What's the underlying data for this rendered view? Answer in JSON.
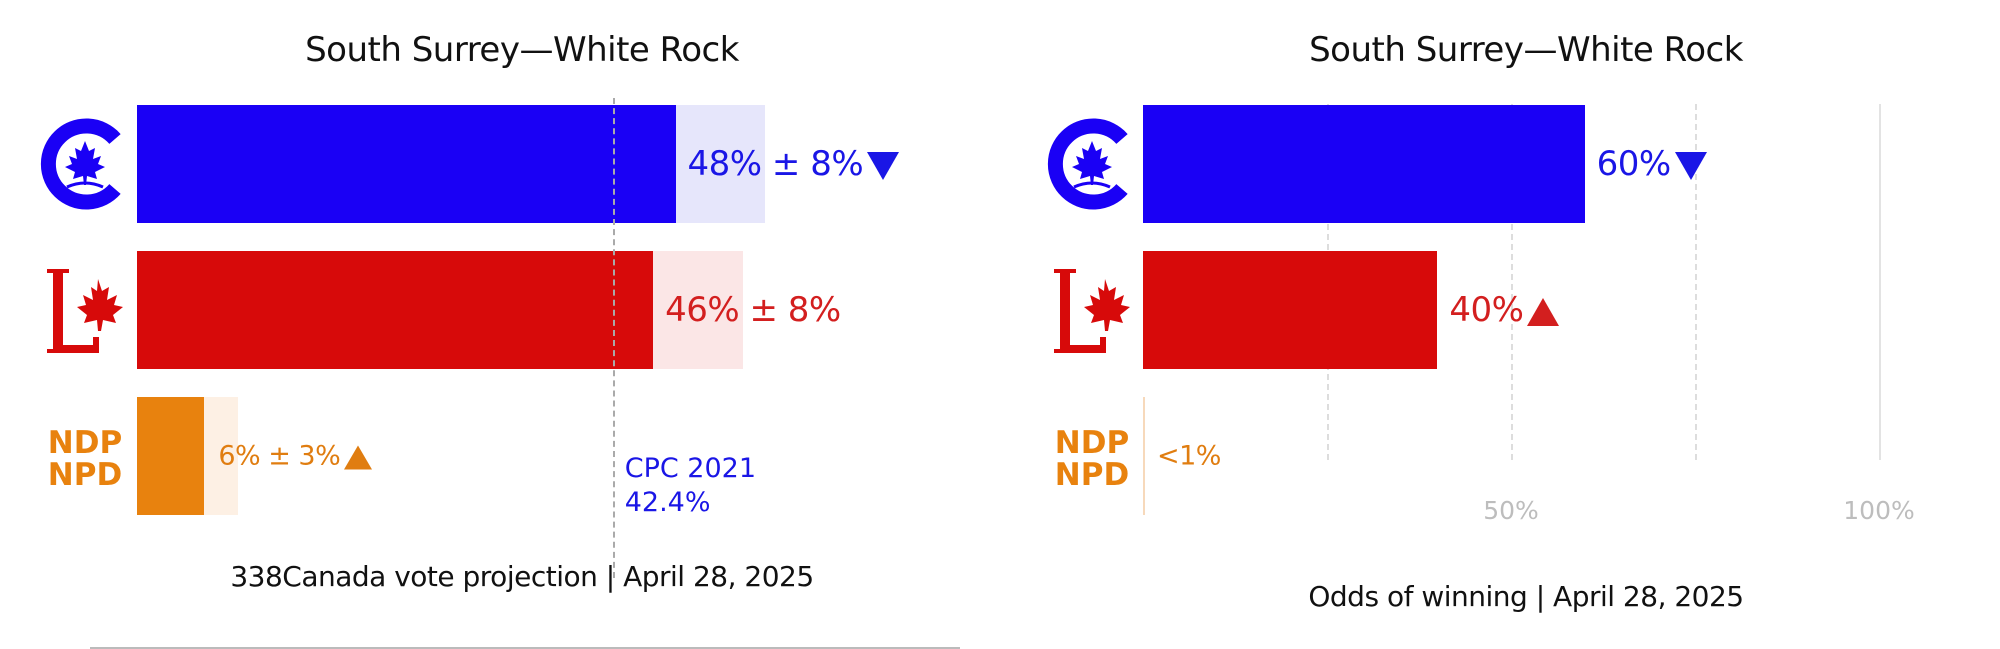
{
  "colors": {
    "cpc": "#1a00f5",
    "cpc_band": "#e6e6fb",
    "lpc": "#d70a0a",
    "lpc_band": "#fbe6e6",
    "ndp": "#e8820e",
    "ndp_band": "#fdf0e4",
    "cpc_text": "#1a16e6",
    "lpc_text": "#d31f1f",
    "ndp_text": "#e07d10"
  },
  "parties": [
    {
      "id": "cpc",
      "logo_icon": "conservative-logo-icon"
    },
    {
      "id": "lpc",
      "logo_icon": "liberal-logo-icon"
    },
    {
      "id": "ndp",
      "logo_icon": "ndp-logo-icon",
      "logo_text": [
        "NDP",
        "NPD"
      ]
    }
  ],
  "chart_data": [
    {
      "type": "bar",
      "orientation": "horizontal",
      "title": "South Surrey—White Rock",
      "caption": "338Canada vote projection | April 28, 2025",
      "xlim": [
        0,
        100
      ],
      "categories": [
        "CPC",
        "LPC",
        "NDP"
      ],
      "values": [
        48,
        46,
        6
      ],
      "margins": [
        8,
        8,
        3
      ],
      "labels": [
        "48% ± 8%",
        "46% ± 8%",
        "6% ± 3%"
      ],
      "trends": [
        "down",
        "none",
        "up"
      ],
      "reference": {
        "value": 42.4,
        "label_line1": "CPC 2021",
        "label_line2": "42.4%"
      }
    },
    {
      "type": "bar",
      "orientation": "horizontal",
      "title": "South Surrey—White Rock",
      "caption": "Odds of winning | April 28, 2025",
      "xlim": [
        0,
        100
      ],
      "categories": [
        "CPC",
        "LPC",
        "NDP"
      ],
      "values": [
        60,
        40,
        0.5
      ],
      "labels": [
        "60%",
        "40%",
        "<1%"
      ],
      "trends": [
        "down",
        "up",
        "none"
      ],
      "xticks": [
        {
          "value": 50,
          "label": "50%"
        },
        {
          "value": 100,
          "label": "100%"
        }
      ],
      "grid": true
    }
  ]
}
